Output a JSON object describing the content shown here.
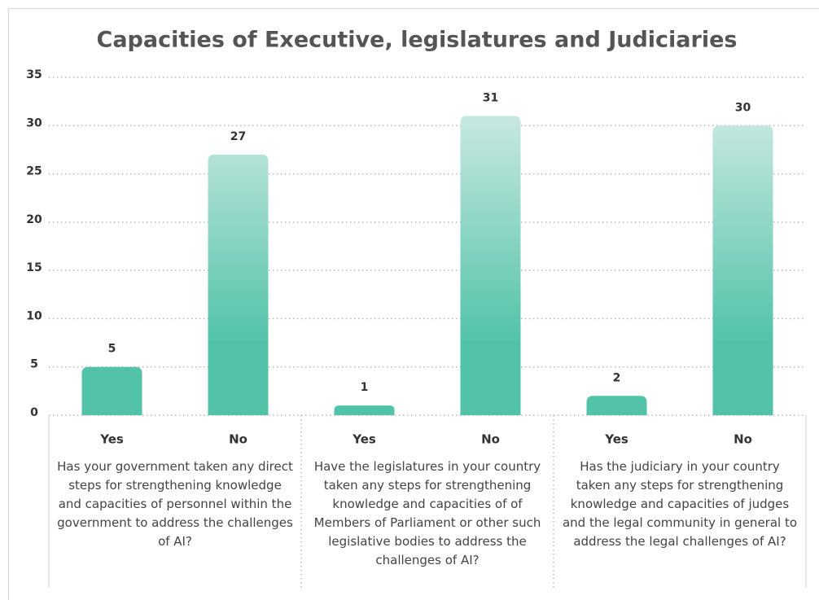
{
  "chart_data": {
    "type": "bar",
    "title": "Capacities of Executive, legislatures and Judiciaries",
    "categories": [
      "Yes",
      "No",
      "Yes",
      "No",
      "Yes",
      "No"
    ],
    "groups": [
      "Has your government taken any direct steps for strengthening knowledge and capacities of personnel within the government to address the challenges of AI?",
      "Have the legislatures in your country taken any steps for strengthening knowledge and capacities of of Members of Parliament or other such legislative bodies to address the challenges of AI?",
      "Has the judiciary in your country taken any steps for strengthening knowledge and capacities of judges and the legal community in general to address the legal challenges of AI?"
    ],
    "values": [
      5,
      27,
      1,
      31,
      2,
      30
    ],
    "color": "#52c3a9",
    "ylim": [
      0,
      35
    ],
    "yticks": [
      0,
      5,
      10,
      15,
      20,
      25,
      30,
      35
    ],
    "grid": true
  }
}
